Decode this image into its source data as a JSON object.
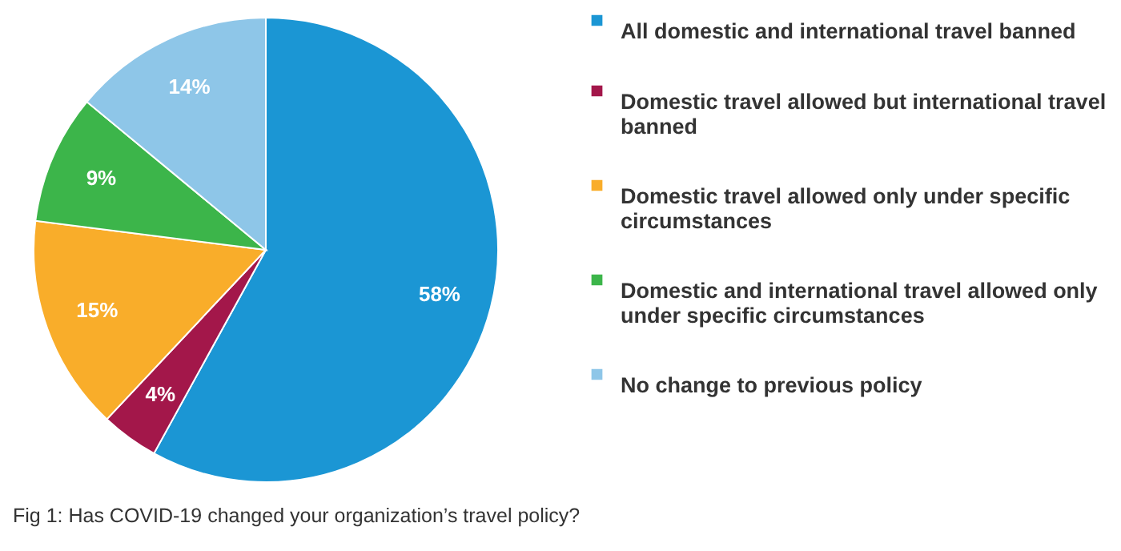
{
  "chart_data": {
    "type": "pie",
    "categories": [
      "All domestic and international travel banned",
      "Domestic travel allowed but international travel banned",
      "Domestic travel allowed only under specific circumstances",
      "Domestic and international travel allowed only under specific circumstances",
      "No change to previous policy"
    ],
    "values": [
      58,
      4,
      15,
      9,
      14
    ],
    "colors": [
      "#1b96d4",
      "#a3174a",
      "#f9ad2a",
      "#3cb54a",
      "#8ec6e8"
    ],
    "value_labels": [
      "58%",
      "4%",
      "15%",
      "9%",
      "14%"
    ],
    "legend": "right",
    "annotations": [
      "Fig 1: Has COVID-19 changed your organization’s travel policy?"
    ]
  }
}
